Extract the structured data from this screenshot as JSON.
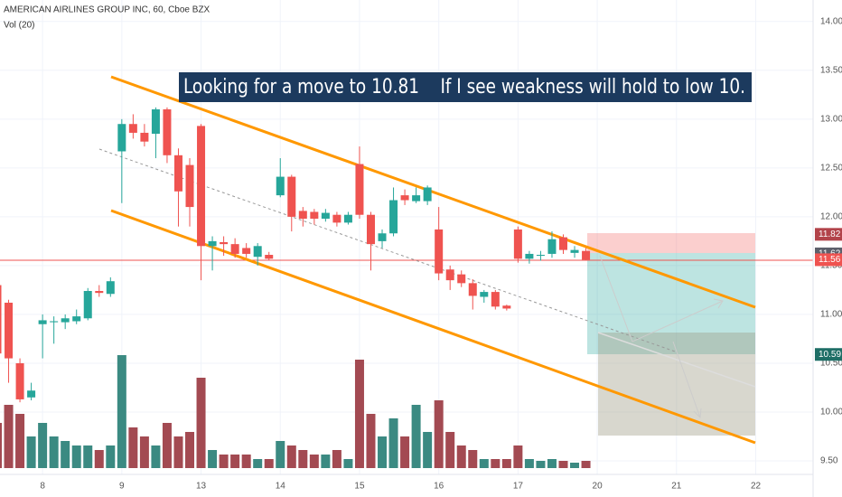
{
  "chart_data": {
    "type": "candlestick",
    "title": "AMERICAN AIRLINES GROUP INC, 60, Cboe BZX",
    "subtitle": "Vol (20)",
    "annotation": "Looking for a move to 10.81    If I see weakness will hold to low 10.",
    "open": [
      11.3,
      11.12,
      10.5,
      10.15,
      10.9,
      10.92,
      10.92,
      10.93,
      10.96,
      11.24,
      11.21,
      12.67,
      12.95,
      12.86,
      12.85,
      13.1,
      12.63,
      12.53,
      12.93,
      11.7,
      11.74,
      11.72,
      11.68,
      11.59,
      11.61,
      12.22,
      12.41,
      12.06,
      12.05,
      11.98,
      12.02,
      11.94,
      12.54,
      12.02,
      11.75,
      11.83,
      12.22,
      12.16,
      12.16,
      11.87,
      11.46,
      11.41,
      11.32,
      11.18,
      11.23,
      11.09,
      11.87,
      11.57,
      11.6,
      11.62,
      11.79,
      11.63,
      11.65
    ],
    "high": [
      11.35,
      11.15,
      10.55,
      10.3,
      11.0,
      10.98,
      11.0,
      11.05,
      11.27,
      11.3,
      11.38,
      13.0,
      13.05,
      12.95,
      13.12,
      13.12,
      12.7,
      12.6,
      12.95,
      11.8,
      11.8,
      11.78,
      11.73,
      11.73,
      11.64,
      12.6,
      12.43,
      12.1,
      12.08,
      12.08,
      12.05,
      12.05,
      12.72,
      12.05,
      11.87,
      12.3,
      12.28,
      12.3,
      12.32,
      12.1,
      11.5,
      11.45,
      11.36,
      11.25,
      11.25,
      11.1,
      11.9,
      11.65,
      11.65,
      11.85,
      11.82,
      11.7,
      11.68
    ],
    "low": [
      10.55,
      10.3,
      10.1,
      10.12,
      10.55,
      10.7,
      10.85,
      10.9,
      10.94,
      11.18,
      11.18,
      12.14,
      12.8,
      12.72,
      12.6,
      12.55,
      11.9,
      11.9,
      11.35,
      11.45,
      11.6,
      11.58,
      11.58,
      11.5,
      11.55,
      12.2,
      11.85,
      11.9,
      11.92,
      11.95,
      11.9,
      11.92,
      11.98,
      11.45,
      11.68,
      11.8,
      12.12,
      12.14,
      12.12,
      11.35,
      11.25,
      11.28,
      11.05,
      11.12,
      11.05,
      11.04,
      11.53,
      11.52,
      11.55,
      11.58,
      11.62,
      11.58,
      11.55
    ],
    "close": [
      10.6,
      10.55,
      10.13,
      10.22,
      10.94,
      10.93,
      10.96,
      10.98,
      11.24,
      11.22,
      11.34,
      12.95,
      12.86,
      12.77,
      13.1,
      12.63,
      12.26,
      12.1,
      11.7,
      11.75,
      11.72,
      11.62,
      11.62,
      11.7,
      11.57,
      12.41,
      12.0,
      11.98,
      11.98,
      12.04,
      11.94,
      12.02,
      12.02,
      11.72,
      11.83,
      12.17,
      12.17,
      12.22,
      12.3,
      11.42,
      11.35,
      11.32,
      11.19,
      11.23,
      11.08,
      11.06,
      11.57,
      11.62,
      11.61,
      11.77,
      11.66,
      11.66,
      11.56
    ],
    "volume": [
      50,
      70,
      60,
      35,
      50,
      35,
      30,
      25,
      25,
      20,
      25,
      125,
      45,
      35,
      25,
      50,
      35,
      40,
      100,
      20,
      15,
      15,
      15,
      10,
      10,
      30,
      25,
      20,
      15,
      15,
      20,
      10,
      120,
      60,
      35,
      55,
      35,
      70,
      40,
      75,
      40,
      25,
      20,
      10,
      10,
      10,
      25,
      10,
      8,
      10,
      8,
      6,
      8
    ],
    "up_color": "#26a69a",
    "down_color": "#ef5350",
    "volume_up_color": "#3b8a82",
    "volume_down_color": "#a34a52",
    "ylim": [
      9.13,
      14.22
    ],
    "yticks": [
      {
        "value": 9.5,
        "label": "9.50"
      },
      {
        "value": 10,
        "label": "10.00"
      },
      {
        "value": 10.5,
        "label": "10.50"
      },
      {
        "value": 11,
        "label": "11.00"
      },
      {
        "value": 11.5,
        "label": "11.50"
      },
      {
        "value": 12,
        "label": "12.00"
      },
      {
        "value": 12.5,
        "label": "12.50"
      },
      {
        "value": 13,
        "label": "13.00"
      },
      {
        "value": 13.5,
        "label": "13.50"
      },
      {
        "value": 14,
        "label": "14.00"
      }
    ],
    "xticks": [
      {
        "value": 4,
        "label": "8"
      },
      {
        "value": 11,
        "label": "9"
      },
      {
        "value": 18,
        "label": "13"
      },
      {
        "value": 25,
        "label": "14"
      },
      {
        "value": 32,
        "label": "15"
      },
      {
        "value": 39,
        "label": "16"
      },
      {
        "value": 46,
        "label": "17"
      },
      {
        "value": 53,
        "label": "20"
      },
      {
        "value": 60,
        "label": "21"
      },
      {
        "value": 67,
        "label": "22"
      }
    ],
    "price_labels": [
      {
        "value": 11.82,
        "label": "11.82",
        "color": "#b2434a"
      },
      {
        "value": 11.62,
        "label": "11.62",
        "color": "#5d606b"
      },
      {
        "value": 11.56,
        "label": "11.56",
        "color": "#ef5350"
      },
      {
        "value": 10.59,
        "label": "10.59",
        "color": "#1e6e66"
      }
    ],
    "grid": true
  }
}
